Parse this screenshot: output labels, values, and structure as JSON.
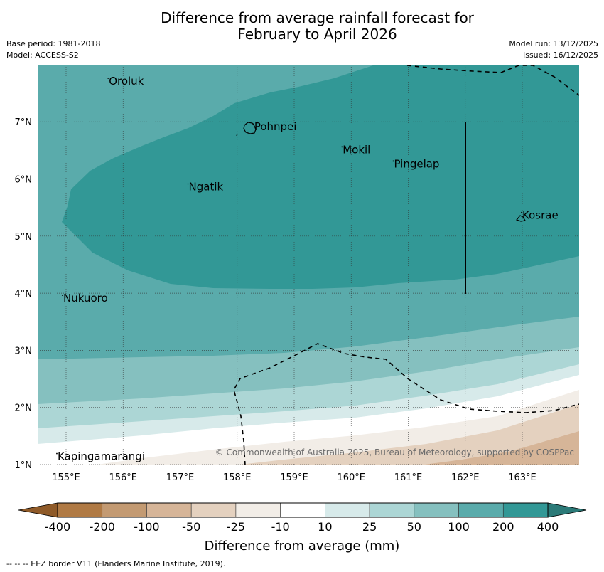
{
  "header": {
    "title_line1": "Difference from average rainfall forecast for",
    "title_line2": "February to April 2026",
    "base_period": "Base period: 1981-2018",
    "model": "Model: ACCESS-S2",
    "model_run": "Model run: 13/12/2025",
    "issued": "Issued: 16/12/2025"
  },
  "map": {
    "lon_range": [
      154.5,
      164.0
    ],
    "lat_range": [
      1.0,
      8.0
    ],
    "lon_ticks": [
      {
        "value": 155,
        "label": "155°E"
      },
      {
        "value": 156,
        "label": "156°E"
      },
      {
        "value": 157,
        "label": "157°E"
      },
      {
        "value": 158,
        "label": "158°E"
      },
      {
        "value": 159,
        "label": "159°E"
      },
      {
        "value": 160,
        "label": "160°E"
      },
      {
        "value": 161,
        "label": "161°E"
      },
      {
        "value": 162,
        "label": "162°E"
      },
      {
        "value": 163,
        "label": "163°E"
      }
    ],
    "lat_ticks": [
      {
        "value": 1,
        "label": "1°N"
      },
      {
        "value": 2,
        "label": "2°N"
      },
      {
        "value": 3,
        "label": "3°N"
      },
      {
        "value": 4,
        "label": "4°N"
      },
      {
        "value": 5,
        "label": "5°N"
      },
      {
        "value": 6,
        "label": "6°N"
      },
      {
        "value": 7,
        "label": "7°N"
      }
    ],
    "places": [
      {
        "name": "Oroluk",
        "lon": 155.75,
        "lat": 7.65
      },
      {
        "name": "Pohnpei",
        "lon": 158.3,
        "lat": 6.85
      },
      {
        "name": "Mokil",
        "lon": 159.85,
        "lat": 6.45
      },
      {
        "name": "Pingelap",
        "lon": 160.75,
        "lat": 6.2
      },
      {
        "name": "Ngatik",
        "lon": 157.15,
        "lat": 5.8
      },
      {
        "name": "Kosrae",
        "lon": 163.0,
        "lat": 5.3
      },
      {
        "name": "Nukuoro",
        "lon": 154.95,
        "lat": 3.85
      },
      {
        "name": "Kapingamarangi",
        "lon": 154.85,
        "lat": 1.08
      }
    ],
    "copyright": "© Commonwealth of Australia 2025, Bureau of Meteorology, supported by COSPPac"
  },
  "colorbar": {
    "title": "Difference from average (mm)",
    "ticks": [
      "-400",
      "-200",
      "-100",
      "-50",
      "-25",
      "-10",
      "10",
      "25",
      "50",
      "100",
      "200",
      "400"
    ],
    "colors": [
      "#8f5a28",
      "#b07a44",
      "#c39a72",
      "#d6b598",
      "#e4d1bf",
      "#f2ede7",
      "#ffffff",
      "#d7eaea",
      "#acd6d5",
      "#85c0bf",
      "#5aabab",
      "#329896",
      "#2b7a78"
    ]
  },
  "footnote": "-- -- -- EEZ border V11 (Flanders Marine Institute, 2019)."
}
